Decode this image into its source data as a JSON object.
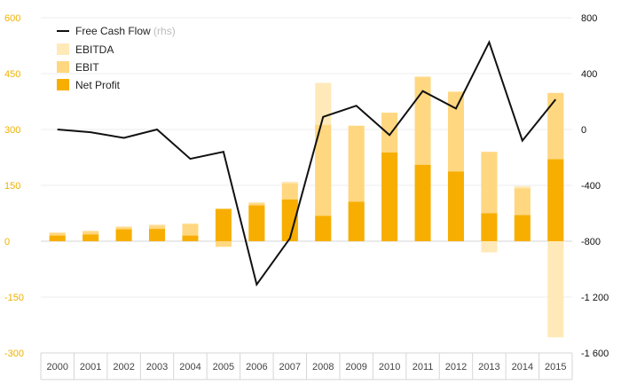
{
  "chart_data": {
    "type": "bar",
    "categories": [
      "2000",
      "2001",
      "2002",
      "2003",
      "2004",
      "2005",
      "2006",
      "2007",
      "2008",
      "2009",
      "2010",
      "2011",
      "2012",
      "2013",
      "2014",
      "2015"
    ],
    "series": [
      {
        "name": "EBITDA",
        "color": "#FFE9B8",
        "values": [
          24,
          28,
          40,
          45,
          48,
          82,
          105,
          160,
          425,
          310,
          345,
          443,
          403,
          238,
          148,
          398
        ]
      },
      {
        "name": "EBIT",
        "color": "#FFD780",
        "values": [
          22,
          27,
          38,
          42,
          46,
          -15,
          102,
          155,
          312,
          310,
          345,
          440,
          400,
          240,
          142,
          398
        ]
      },
      {
        "name": "Net Profit",
        "color": "#F7AE00",
        "values": [
          15,
          18,
          32,
          33,
          15,
          87,
          96,
          112,
          68,
          106,
          238,
          205,
          187,
          75,
          70,
          220
        ]
      },
      {
        "name": "Free Cash Flow",
        "legend_suffix": "(rhs)",
        "color": "#111111",
        "axis": "right",
        "values": [
          0,
          -20,
          -60,
          0,
          -210,
          -160,
          -1110,
          -780,
          90,
          170,
          -40,
          275,
          150,
          625,
          -80,
          215
        ]
      }
    ],
    "extra_negative": [
      {
        "category": "2013",
        "series": "EBITDA",
        "value": -30
      },
      {
        "category": "2015",
        "series": "EBITDA",
        "value": -258
      }
    ],
    "y_left": {
      "ylim": [
        -300,
        600
      ],
      "ticks": [
        600,
        450,
        300,
        150,
        0,
        -150,
        -300
      ],
      "tick_labels": [
        "600",
        "450",
        "300",
        "150",
        "0",
        "-150",
        "-300"
      ],
      "color": "#F0B100"
    },
    "y_right": {
      "ylim": [
        -1600,
        800
      ],
      "ticks": [
        800,
        400,
        0,
        -400,
        -800,
        -1200,
        -1600
      ],
      "tick_labels": [
        "800",
        "400",
        "0",
        "-400",
        "-800",
        "-1 200",
        "-1 600"
      ],
      "color": "#111111"
    },
    "grid": true,
    "legend_position": "top-left"
  }
}
